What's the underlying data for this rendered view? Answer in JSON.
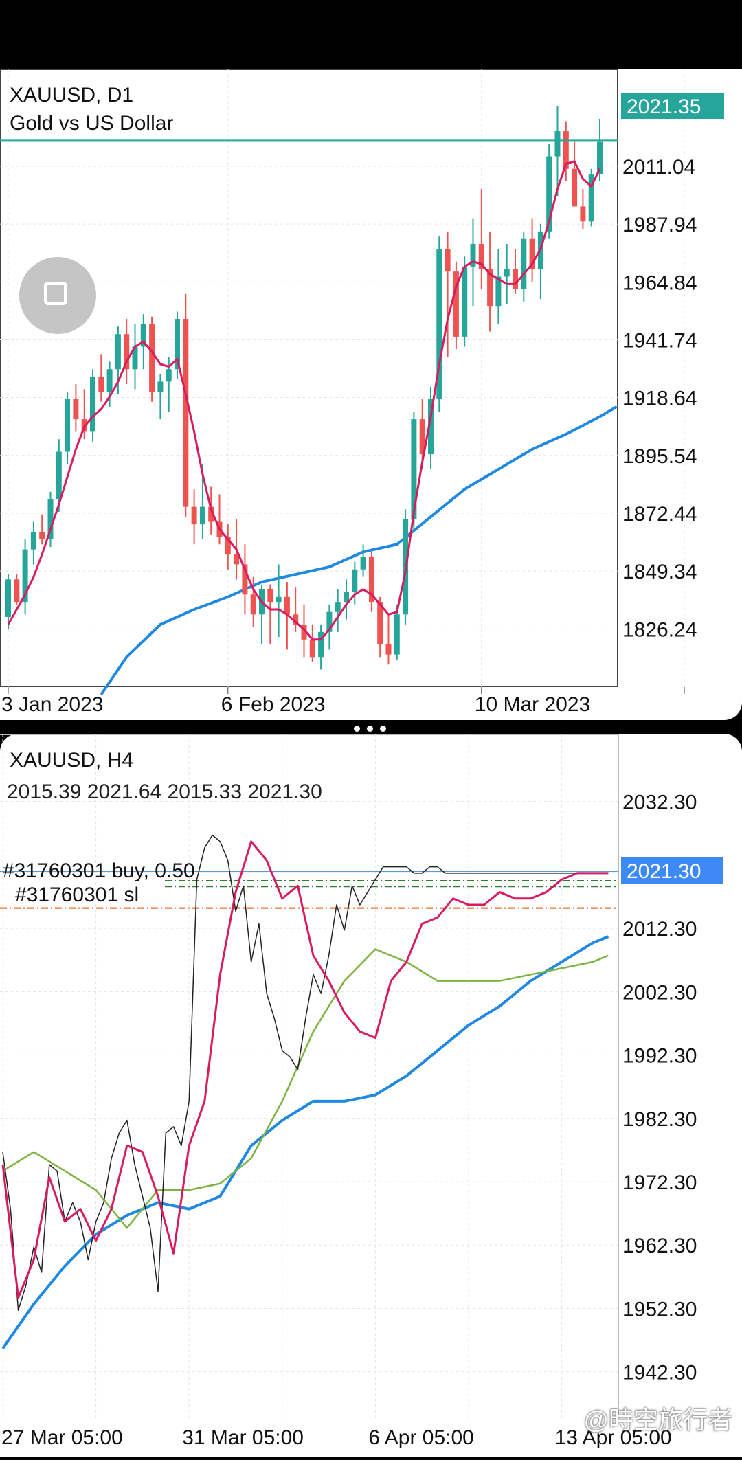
{
  "colors": {
    "bull": "#26a69a",
    "bear": "#ef5350",
    "ma_fast": "#d81b60",
    "ma_slow": "#1e88e5",
    "ma_mid": "#7cb342",
    "line_h4": "#222222",
    "price_tag": "#26a69a",
    "price_tag_h4": "#3d8af7",
    "sl_line": "#2e7d32",
    "order_line": "#e65100",
    "grid": "#e6e6e6"
  },
  "watermark": "@時空旅行者",
  "chart_data": [
    {
      "type": "candlestick",
      "symbol": "XAUUSD, D1",
      "subtitle": "Gold vs US Dollar",
      "current_price_label": "2021.35",
      "current_price": 2021.35,
      "ylim": [
        1803,
        2050
      ],
      "y_ticks": [
        2011.04,
        1987.94,
        1964.84,
        1941.74,
        1918.64,
        1895.54,
        1872.44,
        1849.34,
        1826.24
      ],
      "y_tick_labels": [
        "2011.04",
        "1987.94",
        "1964.84",
        "1941.74",
        "1918.64",
        "1895.54",
        "1872.44",
        "1849.34",
        "1826.24"
      ],
      "x_ticks": [
        {
          "label": "3 Jan 2023",
          "index": 0
        },
        {
          "label": "6 Feb 2023",
          "index": 26
        },
        {
          "label": "10 Mar 2023",
          "index": 56
        },
        {
          "label": "",
          "index": 80
        }
      ],
      "grid": true,
      "candles": [
        [
          1831,
          1848,
          1826,
          1846
        ],
        [
          1846,
          1848,
          1836,
          1837
        ],
        [
          1837,
          1862,
          1832,
          1858
        ],
        [
          1858,
          1869,
          1852,
          1865
        ],
        [
          1865,
          1872,
          1860,
          1862
        ],
        [
          1862,
          1881,
          1859,
          1878
        ],
        [
          1878,
          1902,
          1873,
          1897
        ],
        [
          1897,
          1921,
          1892,
          1918
        ],
        [
          1918,
          1924,
          1905,
          1910
        ],
        [
          1910,
          1922,
          1902,
          1905
        ],
        [
          1905,
          1930,
          1901,
          1927
        ],
        [
          1927,
          1936,
          1917,
          1921
        ],
        [
          1921,
          1933,
          1915,
          1930
        ],
        [
          1930,
          1947,
          1920,
          1944
        ],
        [
          1944,
          1950,
          1924,
          1930
        ],
        [
          1930,
          1948,
          1922,
          1939
        ],
        [
          1939,
          1952,
          1930,
          1948
        ],
        [
          1948,
          1951,
          1917,
          1921
        ],
        [
          1921,
          1928,
          1910,
          1925
        ],
        [
          1925,
          1935,
          1913,
          1930
        ],
        [
          1930,
          1953,
          1926,
          1950
        ],
        [
          1950,
          1960,
          1871,
          1875
        ],
        [
          1875,
          1882,
          1860,
          1868
        ],
        [
          1868,
          1892,
          1862,
          1875
        ],
        [
          1875,
          1883,
          1864,
          1869
        ],
        [
          1869,
          1880,
          1860,
          1863
        ],
        [
          1863,
          1868,
          1850,
          1856
        ],
        [
          1856,
          1870,
          1846,
          1852
        ],
        [
          1852,
          1860,
          1832,
          1840
        ],
        [
          1840,
          1847,
          1827,
          1832
        ],
        [
          1832,
          1844,
          1820,
          1842
        ],
        [
          1842,
          1844,
          1820,
          1837
        ],
        [
          1837,
          1852,
          1823,
          1839
        ],
        [
          1839,
          1845,
          1818,
          1832
        ],
        [
          1832,
          1843,
          1825,
          1828
        ],
        [
          1828,
          1836,
          1815,
          1822
        ],
        [
          1822,
          1828,
          1813,
          1815
        ],
        [
          1815,
          1828,
          1810,
          1825
        ],
        [
          1825,
          1836,
          1818,
          1833
        ],
        [
          1833,
          1842,
          1825,
          1837
        ],
        [
          1837,
          1846,
          1830,
          1841
        ],
        [
          1841,
          1853,
          1836,
          1850
        ],
        [
          1850,
          1860,
          1847,
          1855
        ],
        [
          1855,
          1857,
          1833,
          1837
        ],
        [
          1837,
          1839,
          1815,
          1820
        ],
        [
          1820,
          1832,
          1812,
          1816
        ],
        [
          1816,
          1836,
          1814,
          1832
        ],
        [
          1832,
          1874,
          1828,
          1870
        ],
        [
          1870,
          1913,
          1865,
          1910
        ],
        [
          1910,
          1918,
          1890,
          1896
        ],
        [
          1896,
          1923,
          1890,
          1918
        ],
        [
          1918,
          1983,
          1913,
          1978
        ],
        [
          1978,
          1985,
          1935,
          1969
        ],
        [
          1969,
          1973,
          1938,
          1943
        ],
        [
          1943,
          1975,
          1939,
          1971
        ],
        [
          1971,
          1990,
          1955,
          1980
        ],
        [
          1980,
          2002,
          1962,
          1970
        ],
        [
          1970,
          1985,
          1945,
          1955
        ],
        [
          1955,
          1978,
          1948,
          1967
        ],
        [
          1967,
          1980,
          1956,
          1970
        ],
        [
          1970,
          1978,
          1960,
          1962
        ],
        [
          1962,
          1985,
          1957,
          1982
        ],
        [
          1982,
          1990,
          1965,
          1970
        ],
        [
          1970,
          1988,
          1958,
          1985
        ],
        [
          1985,
          2020,
          1982,
          2015
        ],
        [
          2015,
          2035,
          1999,
          2025
        ],
        [
          2025,
          2029,
          2005,
          2010
        ],
        [
          2010,
          2021,
          1995,
          1995
        ],
        [
          1995,
          2002,
          1986,
          1989
        ],
        [
          1989,
          2010,
          1987,
          2008
        ],
        [
          2008,
          2030,
          2005,
          2021
        ]
      ],
      "series": [
        {
          "name": "",
          "color_key": "ma_fast",
          "y": [
            1828,
            1834,
            1840,
            1847,
            1856,
            1866,
            1876,
            1887,
            1898,
            1907,
            1911,
            1914,
            1919,
            1925,
            1933,
            1939,
            1941,
            1937,
            1932,
            1931,
            1934,
            1920,
            1905,
            1888,
            1874,
            1866,
            1862,
            1858,
            1850,
            1842,
            1837,
            1834,
            1834,
            1832,
            1829,
            1826,
            1822,
            1822,
            1826,
            1831,
            1836,
            1840,
            1842,
            1840,
            1836,
            1832,
            1833,
            1849,
            1873,
            1893,
            1911,
            1932,
            1950,
            1963,
            1971,
            1973,
            1972,
            1968,
            1966,
            1964,
            1964,
            1968,
            1972,
            1978,
            1989,
            2002,
            2012,
            2013,
            2006,
            2003,
            2010
          ]
        },
        {
          "name": "",
          "color_key": "ma_slow",
          "x": [
            11,
            14,
            18,
            22,
            26,
            30,
            34,
            38,
            42,
            46,
            50,
            54,
            58,
            62,
            66,
            70,
            72
          ],
          "y": [
            1800,
            1815,
            1828,
            1834,
            1839,
            1845,
            1848,
            1851,
            1857,
            1860,
            1871,
            1882,
            1890,
            1898,
            1904,
            1911,
            1915
          ]
        }
      ]
    },
    {
      "type": "line",
      "symbol": "XAUUSD, H4",
      "ohlc_text": "2015.39 2021.64 2015.33 2021.30",
      "current_price_label": "2021.30",
      "current_price": 2021.3,
      "order_label": "#31760301 buy, 0.50",
      "sl_label": "#31760301 sl",
      "order_line_price": 2015.5,
      "sl_line_prices": [
        2019.8,
        2018.9
      ],
      "ylim": [
        1935,
        2043
      ],
      "y_ticks": [
        2032.3,
        2012.3,
        2002.3,
        1992.3,
        1982.3,
        1972.3,
        1962.3,
        1952.3,
        1942.3
      ],
      "y_tick_labels": [
        "2032.30",
        "2012.30",
        "2002.30",
        "1992.30",
        "1982.30",
        "1972.30",
        "1962.30",
        "1952.30",
        "1942.30"
      ],
      "x_ticks": [
        {
          "label": "27 Mar 05:00",
          "index": 0
        },
        {
          "label": "31 Mar 05:00",
          "index": 24
        },
        {
          "label": "6 Apr 05:00",
          "index": 48
        },
        {
          "label": "13 Apr 05:00",
          "index": 72
        },
        {
          "label": "",
          "index": 12
        },
        {
          "label": "",
          "index": 36
        },
        {
          "label": "",
          "index": 60
        }
      ],
      "grid": true,
      "series": [
        {
          "name": "",
          "color_key": "line_h4",
          "x": [
            0,
            1,
            2,
            3,
            4,
            5,
            6,
            7,
            8,
            9,
            10,
            11,
            12,
            13,
            14,
            15,
            16,
            17,
            18,
            19,
            20,
            21,
            22,
            23,
            24,
            25,
            26,
            27,
            28,
            29,
            30,
            31,
            32,
            33,
            34,
            35,
            36,
            37,
            38,
            39,
            40,
            41,
            42,
            43,
            44,
            45,
            46,
            47,
            48,
            49,
            50,
            51,
            52,
            53,
            54,
            55,
            56,
            57,
            58,
            59,
            60,
            61,
            62,
            63,
            64,
            65,
            66,
            67,
            68,
            69,
            70,
            71,
            72,
            73,
            74,
            75,
            76,
            77,
            78
          ],
          "y": [
            1977,
            1968,
            1952,
            1956,
            1962,
            1958,
            1975,
            1974,
            1966,
            1969,
            1966,
            1960,
            1966,
            1969,
            1976,
            1980,
            1982,
            1975,
            1970,
            1965,
            1955,
            1980,
            1981,
            1978,
            1985,
            2020,
            2025,
            2027,
            2026,
            2023,
            2015,
            2019,
            2007,
            2013,
            2002,
            1998,
            1993,
            1992,
            1990,
            1998,
            2005,
            2002,
            2008,
            2016,
            2012,
            2019,
            2016,
            2018,
            2020,
            2022,
            2022,
            2022,
            2022,
            2021,
            2021,
            2022,
            2022,
            2021,
            2021,
            2021,
            2021,
            2021,
            2021,
            2021,
            2021,
            2021,
            2021,
            2021,
            2021,
            2021,
            2021,
            2021,
            2021,
            2021,
            2021,
            2021,
            2021,
            2021,
            2021
          ]
        },
        {
          "name": "",
          "color_key": "ma_fast",
          "x": [
            0,
            2,
            4,
            6,
            8,
            10,
            12,
            14,
            16,
            18,
            20,
            22,
            24,
            26,
            28,
            30,
            32,
            34,
            36,
            38,
            40,
            42,
            44,
            46,
            48,
            50,
            52,
            54,
            56,
            58,
            60,
            62,
            64,
            66,
            68,
            70,
            72,
            74,
            76,
            78
          ],
          "y": [
            1975,
            1954,
            1960,
            1973,
            1966,
            1968,
            1963,
            1968,
            1978,
            1977,
            1970,
            1961,
            1978,
            1985,
            2005,
            2018,
            2026,
            2023,
            2017,
            2019,
            2008,
            2004,
            1999,
            1996,
            1995,
            2004,
            2007,
            2013,
            2014,
            2017,
            2016,
            2016,
            2018,
            2017,
            2017,
            2018,
            2020,
            2021,
            2021,
            2021
          ]
        },
        {
          "name": "",
          "color_key": "ma_mid",
          "x": [
            0,
            4,
            8,
            12,
            16,
            20,
            24,
            28,
            32,
            36,
            40,
            44,
            48,
            52,
            56,
            60,
            64,
            68,
            72,
            76,
            78
          ],
          "y": [
            1974,
            1977,
            1974,
            1971,
            1965,
            1971,
            1971,
            1972,
            1976,
            1985,
            1996,
            2004,
            2009,
            2007,
            2004,
            2004,
            2004,
            2005,
            2006,
            2007,
            2008
          ]
        },
        {
          "name": "",
          "color_key": "ma_slow",
          "x": [
            0,
            4,
            8,
            12,
            16,
            20,
            24,
            28,
            32,
            36,
            40,
            44,
            48,
            52,
            56,
            60,
            64,
            68,
            72,
            76,
            78
          ],
          "y": [
            1946,
            1953,
            1959,
            1964,
            1967,
            1969,
            1968,
            1970,
            1978,
            1982,
            1985,
            1985,
            1986,
            1989,
            1993,
            1997,
            2000,
            2004,
            2007,
            2010,
            2011
          ]
        }
      ]
    }
  ]
}
